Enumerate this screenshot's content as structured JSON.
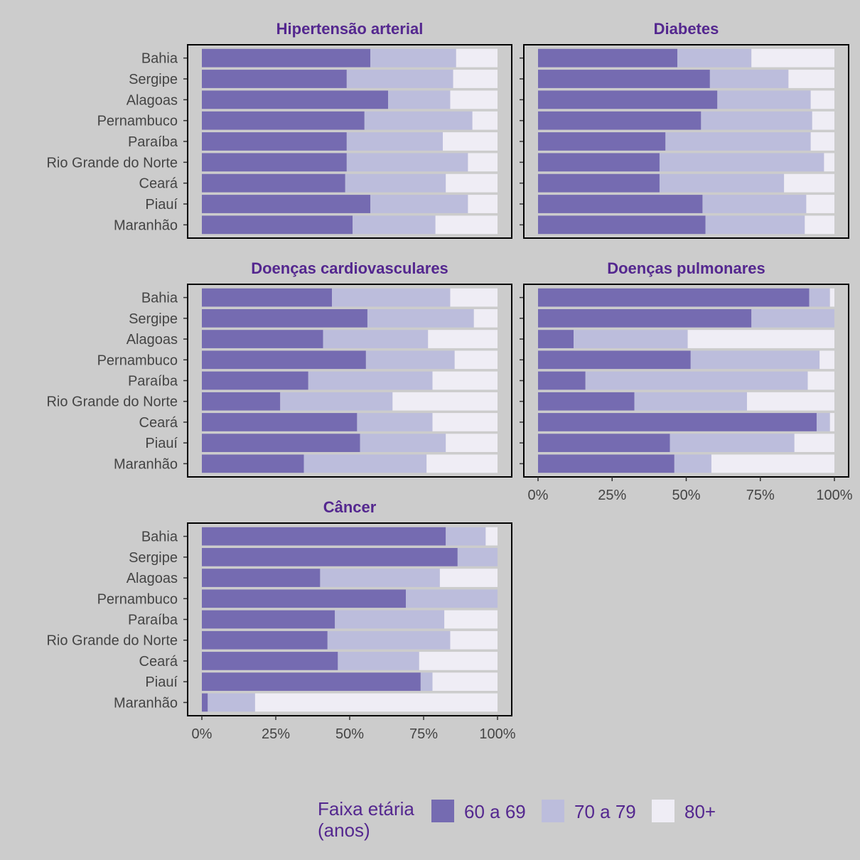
{
  "chart_data": {
    "type": "bar",
    "orientation": "horizontal",
    "stacked": true,
    "normalized": true,
    "xlim": [
      0,
      100
    ],
    "x_ticks": [
      "0%",
      "25%",
      "50%",
      "75%",
      "100%"
    ],
    "categories": [
      "Bahia",
      "Sergipe",
      "Alagoas",
      "Pernambuco",
      "Paraíba",
      "Rio Grande do Norte",
      "Ceará",
      "Piauí",
      "Maranhão"
    ],
    "series_names": [
      "60 a 69",
      "70 a 79",
      "80+"
    ],
    "colors": [
      "#756bb1",
      "#bcbddc",
      "#efedf5"
    ],
    "legend": {
      "title_lines": [
        "Faixa etária",
        "(anos)"
      ],
      "position": "bottom"
    },
    "panels": [
      {
        "title": "Hipertensão arterial",
        "series": [
          {
            "name": "60 a 69",
            "values": [
              57,
              49,
              63,
              55,
              49,
              49,
              48.5,
              57,
              51
            ]
          },
          {
            "name": "70 a 79",
            "values": [
              29,
              36,
              21,
              36.5,
              32.5,
              41,
              34,
              33,
              28
            ]
          },
          {
            "name": "80+",
            "values": [
              14,
              15,
              16,
              8.5,
              18.5,
              10,
              17.5,
              10,
              21
            ]
          }
        ]
      },
      {
        "title": "Diabetes",
        "series": [
          {
            "name": "60 a 69",
            "values": [
              47,
              58,
              60.5,
              55,
              43,
              41,
              41,
              55.5,
              56.5
            ]
          },
          {
            "name": "70 a 79",
            "values": [
              25,
              26.5,
              31.5,
              37.5,
              49,
              55.5,
              42,
              35,
              33.5
            ]
          },
          {
            "name": "80+",
            "values": [
              28,
              15.5,
              8,
              7.5,
              8,
              3.5,
              17,
              9.5,
              10
            ]
          }
        ]
      },
      {
        "title": "Doenças cardiovasculares",
        "series": [
          {
            "name": "60 a 69",
            "values": [
              44,
              56,
              41,
              55.5,
              36,
              26.5,
              52.5,
              53.5,
              34.5
            ]
          },
          {
            "name": "70 a 79",
            "values": [
              40,
              36,
              35.5,
              30,
              42,
              38,
              25.5,
              29,
              41.5
            ]
          },
          {
            "name": "80+",
            "values": [
              16,
              8,
              23.5,
              14.5,
              22,
              35.5,
              22,
              17.5,
              24
            ]
          }
        ]
      },
      {
        "title": "Doenças pulmonares",
        "series": [
          {
            "name": "60 a 69",
            "values": [
              91.5,
              72,
              12,
              51.5,
              16,
              32.5,
              94,
              44.5,
              46
            ]
          },
          {
            "name": "70 a 79",
            "values": [
              7,
              28,
              38.5,
              43.5,
              75,
              38,
              4.5,
              42,
              12.5
            ]
          },
          {
            "name": "80+",
            "values": [
              1.5,
              0,
              49.5,
              5,
              9,
              29.5,
              1.5,
              13.5,
              41.5
            ]
          }
        ]
      },
      {
        "title": "Câncer",
        "series": [
          {
            "name": "60 a 69",
            "values": [
              82.5,
              86.5,
              40,
              69,
              45,
              42.5,
              46,
              74,
              2
            ]
          },
          {
            "name": "70 a 79",
            "values": [
              13.5,
              13.5,
              40.5,
              31,
              37,
              41.5,
              27.5,
              4,
              16
            ]
          },
          {
            "name": "80+",
            "values": [
              4,
              0,
              19.5,
              0,
              18,
              16,
              26.5,
              22,
              82
            ]
          }
        ]
      }
    ]
  }
}
